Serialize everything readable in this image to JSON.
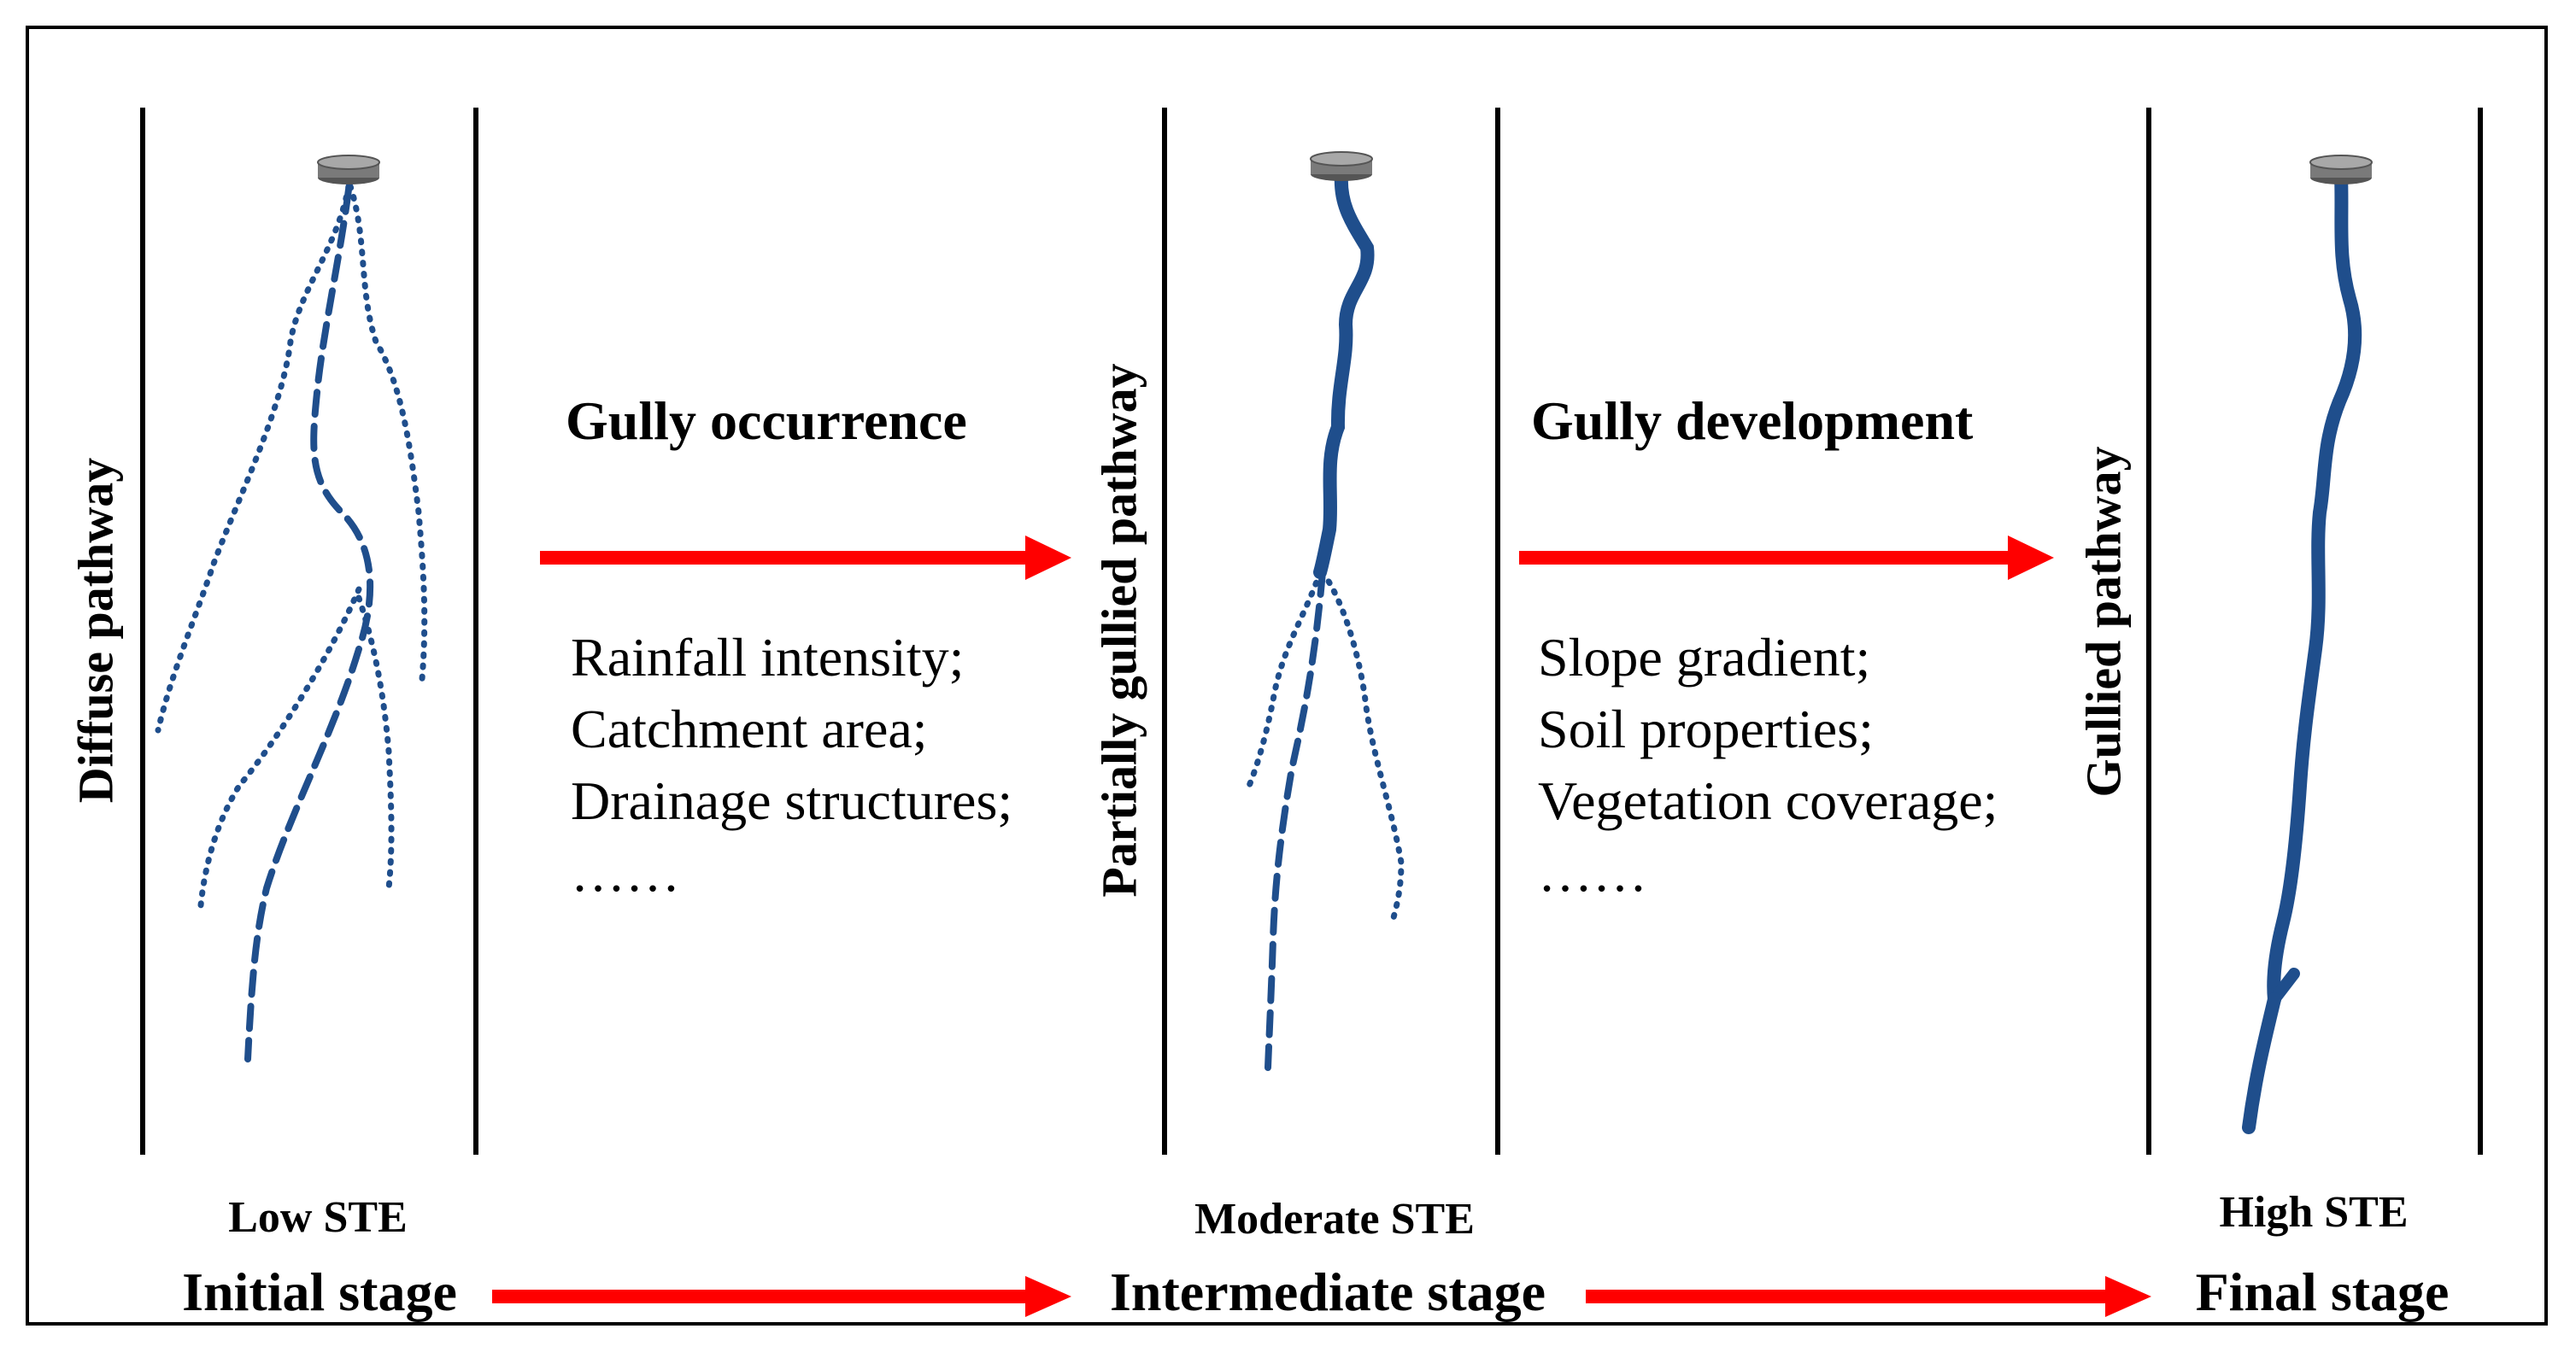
{
  "panels": [
    {
      "pathway_label": "Diffuse pathway",
      "ste_label": "Low STE",
      "stage_label": "Initial stage",
      "channel_form": "diffuse rills (dotted and dashed)"
    },
    {
      "pathway_label": "Partially gullied pathway",
      "ste_label": "Moderate STE",
      "stage_label": "Intermediate stage",
      "channel_form": "gully upstream, rills downstream"
    },
    {
      "pathway_label": "Gullied pathway",
      "ste_label": "High STE",
      "stage_label": "Final stage",
      "channel_form": "continuous gully"
    }
  ],
  "transitions": [
    {
      "title": "Gully occurrence",
      "factors": [
        "Rainfall intensity;",
        "Catchment area;",
        "Drainage structures;",
        "……"
      ]
    },
    {
      "title": "Gully development",
      "factors": [
        "Slope gradient;",
        "Soil properties;",
        "Vegetation coverage;",
        "……"
      ]
    }
  ],
  "colors": {
    "channel": "#1f4e8c",
    "arrow": "#ff0000",
    "outlet_cap": "#7a7a7a",
    "line": "#000000"
  },
  "icons": {
    "outlet": "drain-outlet-icon",
    "arrow": "right-arrow-icon"
  }
}
